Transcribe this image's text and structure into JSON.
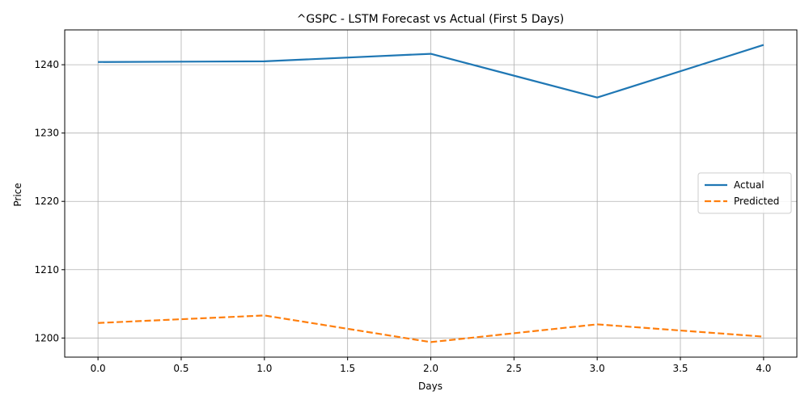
{
  "chart_data": {
    "type": "line",
    "title": "^GSPC - LSTM Forecast vs Actual (First 5 Days)",
    "xlabel": "Days",
    "ylabel": "Price",
    "x": [
      0,
      1,
      2,
      3,
      4
    ],
    "xlim": [
      -0.2,
      4.2
    ],
    "ylim": [
      1197.2,
      1245.1
    ],
    "xticks": [
      0.0,
      0.5,
      1.0,
      1.5,
      2.0,
      2.5,
      3.0,
      3.5,
      4.0
    ],
    "xtick_labels": [
      "0.0",
      "0.5",
      "1.0",
      "1.5",
      "2.0",
      "2.5",
      "3.0",
      "3.5",
      "4.0"
    ],
    "yticks": [
      1200,
      1210,
      1220,
      1230,
      1240
    ],
    "ytick_labels": [
      "1200",
      "1210",
      "1220",
      "1230",
      "1240"
    ],
    "grid": true,
    "legend_position": "center-right",
    "series": [
      {
        "name": "Actual",
        "values": [
          1240.4,
          1240.5,
          1241.6,
          1235.2,
          1242.9
        ],
        "color": "#1f77b4",
        "style": "solid"
      },
      {
        "name": "Predicted",
        "values": [
          1202.2,
          1203.3,
          1199.4,
          1202.0,
          1200.2
        ],
        "color": "#ff7f0e",
        "style": "dashed"
      }
    ]
  }
}
